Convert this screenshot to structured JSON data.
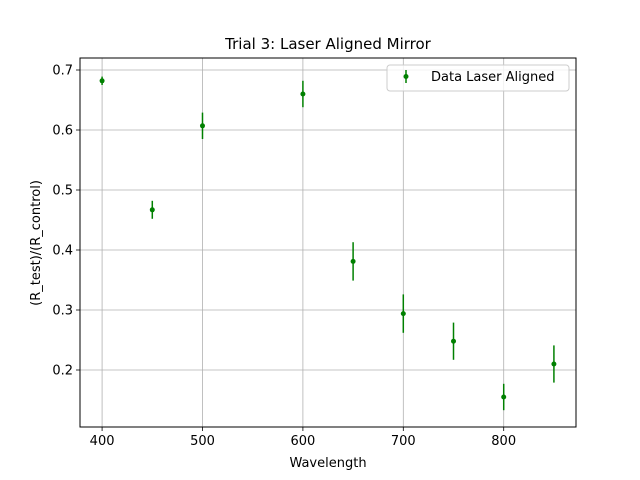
{
  "chart_data": {
    "type": "scatter",
    "title": "Trial 3: Laser Aligned Mirror",
    "xlabel": "Wavelength",
    "ylabel": "(R_test)/(R_control)",
    "xlim": [
      378,
      872
    ],
    "ylim": [
      0.105,
      0.72
    ],
    "xticks": [
      400,
      500,
      600,
      700,
      800
    ],
    "yticks": [
      0.2,
      0.3,
      0.4,
      0.5,
      0.6,
      0.7
    ],
    "ytick_labels": [
      "0.2",
      "0.3",
      "0.4",
      "0.5",
      "0.6",
      "0.7"
    ],
    "grid": true,
    "legend_position": "upper-right",
    "series": [
      {
        "name": "Data Laser Aligned",
        "color": "#008000",
        "marker": "point-with-errorbar",
        "x": [
          400,
          450,
          500,
          600,
          650,
          700,
          750,
          800,
          850
        ],
        "y": [
          0.682,
          0.467,
          0.607,
          0.66,
          0.381,
          0.294,
          0.248,
          0.155,
          0.21
        ],
        "yerr": [
          0.007,
          0.015,
          0.022,
          0.022,
          0.032,
          0.032,
          0.031,
          0.022,
          0.031
        ]
      }
    ]
  }
}
